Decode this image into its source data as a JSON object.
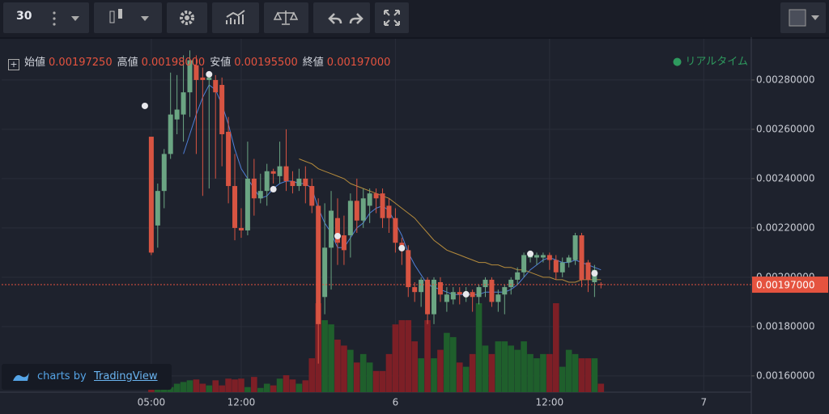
{
  "toolbar": {
    "interval": "30"
  },
  "chart_data": {
    "type": "candlestick",
    "legend": {
      "labels": [
        "始値",
        "高値",
        "安値",
        "終値"
      ],
      "values": [
        0.0019725,
        0.00198,
        0.001955,
        0.00197
      ],
      "value_labels": [
        "0.00197250",
        "0.00198000",
        "0.00195500",
        "0.00197000"
      ]
    },
    "status": "リアルタイム",
    "watermark": "charts by",
    "brand": "TradingView",
    "up_color": "#6ba583",
    "down_color": "#d75442",
    "volume_up_color": "#1f5f2c",
    "volume_down_color": "#7d1f26",
    "grid": true,
    "xlim": [
      -23.3,
      93.4
    ],
    "xticks": [
      {
        "value": 0,
        "label": "05:00"
      },
      {
        "value": 14,
        "label": "12:00"
      },
      {
        "value": 38,
        "label": "6"
      },
      {
        "value": 62,
        "label": "12:00"
      },
      {
        "value": 86,
        "label": "7"
      }
    ],
    "ylim": [
      0.001534,
      0.002967
    ],
    "yticks": [
      {
        "value": 0.0016,
        "label": "0.00160000"
      },
      {
        "value": 0.0018,
        "label": "0.00180000"
      },
      {
        "value": 0.002,
        "label": "0.00200000"
      },
      {
        "value": 0.0022,
        "label": "0.00220000"
      },
      {
        "value": 0.0024,
        "label": "0.00240000"
      },
      {
        "value": 0.0026,
        "label": "0.00260000"
      },
      {
        "value": 0.0028,
        "label": "0.00280000"
      }
    ],
    "open": [
      0.00257,
      0.00221,
      0.00235,
      0.0025,
      0.00264,
      0.00266,
      0.00275,
      0.00286,
      0.00281,
      0.0028,
      0.0028,
      0.00278,
      0.00259,
      0.00237,
      0.0022,
      0.00219,
      0.0024,
      0.00232,
      0.00235,
      0.00243,
      0.00241,
      0.00245,
      0.00239,
      0.00237,
      0.0024,
      0.00237,
      0.00229,
      0.00192,
      0.00212,
      0.00224,
      0.00217,
      0.00217,
      0.00231,
      0.00223,
      0.00229,
      0.00234,
      0.00234,
      0.00229,
      0.00224,
      0.00214,
      0.00211,
      0.00196,
      0.00194,
      0.00199,
      0.00185,
      0.00198,
      0.0019,
      0.00191,
      0.00194,
      0.00193,
      0.00194,
      0.00192,
      0.00196,
      0.00199,
      0.0019,
      0.00193,
      0.00196,
      0.00199,
      0.00202,
      0.00208,
      0.00208,
      0.00208,
      0.00209,
      0.00207,
      0.00202,
      0.00206,
      0.00207,
      0.00217,
      0.00206,
      0.00198,
      0.0019725
    ],
    "high": [
      0.00257,
      0.00238,
      0.00252,
      0.00283,
      0.00282,
      0.0029,
      0.00292,
      0.0029,
      0.00285,
      0.00282,
      0.00282,
      0.00281,
      0.00265,
      0.0025,
      0.00228,
      0.00255,
      0.00248,
      0.00242,
      0.00246,
      0.00244,
      0.00255,
      0.0026,
      0.00243,
      0.00244,
      0.00245,
      0.0024,
      0.00232,
      0.0023,
      0.00235,
      0.00232,
      0.00225,
      0.00234,
      0.0024,
      0.00236,
      0.00236,
      0.00236,
      0.00236,
      0.00232,
      0.00228,
      0.00216,
      0.00213,
      0.00198,
      0.002,
      0.002,
      0.002,
      0.002,
      0.00196,
      0.00196,
      0.00196,
      0.00196,
      0.00195,
      0.00197,
      0.002,
      0.002,
      0.00195,
      0.00197,
      0.002,
      0.00204,
      0.0021,
      0.0021,
      0.0021,
      0.0021,
      0.0021,
      0.00209,
      0.00208,
      0.00209,
      0.00218,
      0.00218,
      0.00207,
      0.00205,
      0.00198
    ],
    "low": [
      0.00209,
      0.00212,
      0.00228,
      0.00248,
      0.00258,
      0.00255,
      0.00265,
      0.0025,
      0.00233,
      0.00236,
      0.0024,
      0.00245,
      0.0023,
      0.00215,
      0.00216,
      0.00217,
      0.00225,
      0.0023,
      0.00229,
      0.00238,
      0.00238,
      0.00235,
      0.00234,
      0.00235,
      0.0023,
      0.00226,
      0.00165,
      0.00185,
      0.00195,
      0.00205,
      0.00205,
      0.00208,
      0.00218,
      0.0022,
      0.00222,
      0.00226,
      0.0022,
      0.00218,
      0.0021,
      0.00205,
      0.00192,
      0.0019,
      0.00188,
      0.00181,
      0.00181,
      0.0019,
      0.00186,
      0.00189,
      0.00189,
      0.0019,
      0.00186,
      0.00189,
      0.00192,
      0.00188,
      0.00186,
      0.00185,
      0.00193,
      0.00197,
      0.002,
      0.00206,
      0.00205,
      0.00206,
      0.00203,
      0.00199,
      0.002,
      0.00204,
      0.00205,
      0.00196,
      0.00194,
      0.00192,
      0.001955
    ],
    "close": [
      0.0021,
      0.00235,
      0.0025,
      0.00266,
      0.00268,
      0.00275,
      0.00288,
      0.0028,
      0.0028,
      0.00281,
      0.00275,
      0.00258,
      0.00237,
      0.0022,
      0.00219,
      0.0024,
      0.00232,
      0.00235,
      0.00243,
      0.00242,
      0.00245,
      0.00239,
      0.00237,
      0.0024,
      0.00237,
      0.00229,
      0.00181,
      0.00212,
      0.00227,
      0.00214,
      0.00211,
      0.00231,
      0.00223,
      0.00232,
      0.00234,
      0.00232,
      0.00224,
      0.00224,
      0.00214,
      0.00211,
      0.00196,
      0.00194,
      0.00199,
      0.00185,
      0.00199,
      0.00193,
      0.00193,
      0.00194,
      0.00193,
      0.00194,
      0.00192,
      0.00196,
      0.00199,
      0.0019,
      0.00193,
      0.00196,
      0.00199,
      0.00202,
      0.00209,
      0.00209,
      0.00209,
      0.00209,
      0.00207,
      0.00202,
      0.00206,
      0.00208,
      0.00217,
      0.00199,
      0.00199,
      0.00203,
      0.00197
    ],
    "volume": [
      5,
      8,
      5,
      6,
      10,
      12,
      14,
      15,
      10,
      8,
      14,
      8,
      16,
      15,
      16,
      6,
      18,
      5,
      10,
      8,
      16,
      20,
      15,
      10,
      14,
      40,
      105,
      85,
      80,
      62,
      55,
      50,
      35,
      45,
      35,
      25,
      25,
      45,
      80,
      85,
      85,
      60,
      40,
      85,
      40,
      50,
      70,
      65,
      35,
      30,
      45,
      105,
      55,
      45,
      60,
      60,
      55,
      50,
      60,
      45,
      40,
      45,
      45,
      105,
      30,
      50,
      45,
      40,
      40,
      40,
      10
    ],
    "series": [
      {
        "color": "#4f7fd6",
        "values": [
          null,
          null,
          null,
          null,
          null,
          0.0025,
          0.00258,
          0.00266,
          0.00273,
          0.00278,
          0.00276,
          0.0027,
          0.00262,
          0.00252,
          0.00244,
          0.0024,
          0.00236,
          0.00232,
          0.00233,
          0.00236,
          0.00238,
          0.00239,
          0.00239,
          0.00238,
          0.00238,
          0.00236,
          0.00228,
          0.00222,
          0.00218,
          0.00212,
          0.00212,
          0.00216,
          0.0022,
          0.00222,
          0.00226,
          0.00228,
          0.00229,
          0.00227,
          0.00222,
          0.00217,
          0.0021,
          0.00205,
          0.00201,
          0.00197,
          0.00196,
          0.00195,
          0.00194,
          0.00193,
          0.00193,
          0.00193,
          0.00193,
          0.00193,
          0.00194,
          0.00194,
          0.00194,
          0.00194,
          0.00195,
          0.00197,
          0.002,
          0.00203,
          0.00205,
          0.00207,
          0.00208,
          0.00207,
          0.00206,
          0.00206,
          0.00207,
          0.00206,
          0.00205,
          0.00204,
          0.00203
        ]
      },
      {
        "color": "#b58b3c",
        "values": [
          null,
          null,
          null,
          null,
          null,
          null,
          null,
          null,
          null,
          null,
          null,
          null,
          null,
          null,
          null,
          null,
          null,
          null,
          null,
          null,
          null,
          null,
          null,
          0.00248,
          0.00247,
          0.00246,
          0.00244,
          0.00243,
          0.00242,
          0.00241,
          0.0024,
          0.00238,
          0.00237,
          0.00236,
          0.00235,
          0.00234,
          0.00233,
          0.00232,
          0.0023,
          0.00228,
          0.00226,
          0.00224,
          0.00221,
          0.00218,
          0.00215,
          0.00213,
          0.00211,
          0.0021,
          0.00209,
          0.00208,
          0.00207,
          0.00206,
          0.00206,
          0.00205,
          0.00205,
          0.00204,
          0.00204,
          0.00203,
          0.00203,
          0.00202,
          0.00201,
          0.002,
          0.002,
          0.00199,
          0.00199,
          0.00198,
          0.00198,
          0.00199,
          0.00199,
          0.00199,
          0.00199
        ]
      }
    ],
    "markers": {
      "color": "#e8e8ec",
      "x": [
        -1,
        9,
        19,
        29,
        39,
        49,
        59,
        69
      ],
      "values": [
        0.002695,
        0.002823,
        0.002357,
        0.002167,
        0.002118,
        0.001931,
        0.002095,
        0.002016
      ]
    },
    "last_price": {
      "value": 0.00197,
      "label": "0.00197000",
      "color": "#e5533f"
    }
  }
}
